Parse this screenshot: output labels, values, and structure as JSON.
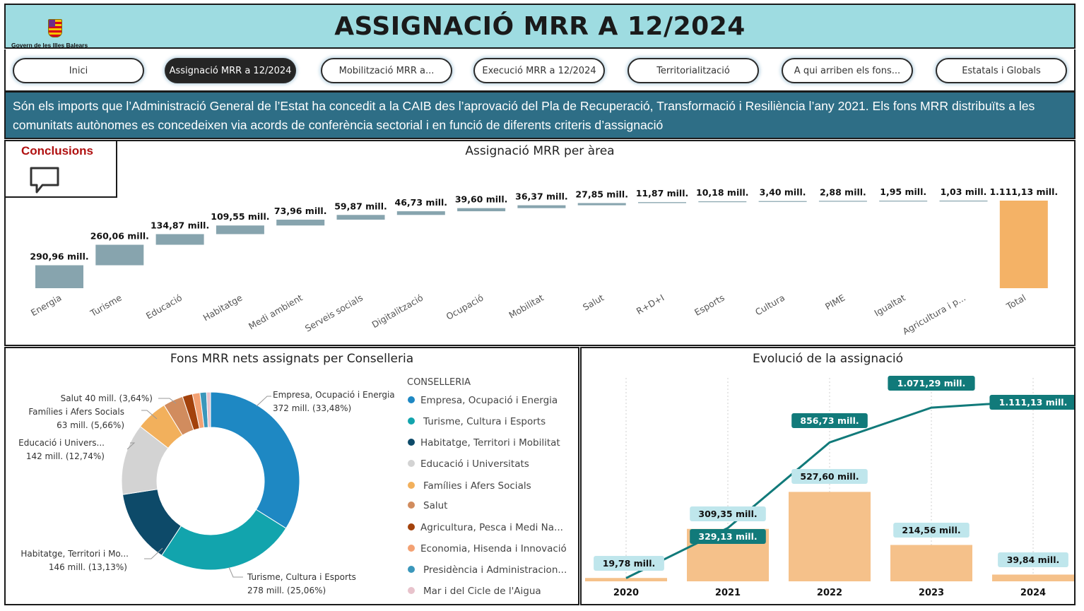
{
  "header": {
    "title": "ASSIGNACIÓ MRR A 12/2024",
    "logo_text": "Govern de les Illes Balears"
  },
  "nav": {
    "tabs": [
      {
        "label": "Inici",
        "active": false
      },
      {
        "label": "Assignació MRR a 12/2024",
        "active": true
      },
      {
        "label": "Mobilització MRR a...",
        "active": false
      },
      {
        "label": "Execució MRR a 12/2024",
        "active": false
      },
      {
        "label": "Territorialització",
        "active": false
      },
      {
        "label": "A qui arriben els fons...",
        "active": false
      },
      {
        "label": "Estatals i Globals",
        "active": false
      }
    ]
  },
  "banner": {
    "text": "Són els imports que l’Administració General de l’Estat ha concedit a la CAIB des l’aprovació del Pla de Recuperació, Transformació i Resiliència l’any 2021. Els fons MRR distribuïts a les comunitats autònomes es concedeixen via acords de conferència sectorial i en funció de diferents criteris d’assignació"
  },
  "conclusions": {
    "label": "Conclusions",
    "icon": "comment-icon"
  },
  "colors": {
    "header_bg": "#9edce1",
    "banner_bg": "#2e6e86",
    "waterfall_bar": "#87a4ae",
    "total_bar": "#f4b266",
    "line": "#117a7a",
    "bar_2": "#f5c18a",
    "label_bg": "#bfe6ec",
    "conclusions_red": "#b01010"
  },
  "chart_data": [
    {
      "type": "bar",
      "subtype": "waterfall",
      "title": "Assignació MRR per àrea",
      "categories": [
        "Energia",
        "Turisme",
        "Educació",
        "Habitatge",
        "Medi ambient",
        "Serveis socials",
        "Digitalització",
        "Ocupació",
        "Mobilitat",
        "Salut",
        "R+D+I",
        "Esports",
        "Cultura",
        "PIME",
        "Igualtat",
        "Agricultura i p...",
        "Total"
      ],
      "values": [
        290.96,
        260.06,
        134.87,
        109.55,
        73.96,
        59.87,
        46.73,
        39.6,
        36.37,
        27.85,
        11.87,
        10.18,
        3.4,
        2.88,
        1.95,
        1.03,
        1111.13
      ],
      "labels": [
        "290,96 mill.",
        "260,06 mill.",
        "134,87 mill.",
        "109,55 mill.",
        "73,96 mill.",
        "59,87 mill.",
        "46,73 mill.",
        "39,60 mill.",
        "36,37 mill.",
        "27,85 mill.",
        "11,87 mill.",
        "10,18 mill.",
        "3,40 mill.",
        "2,88 mill.",
        "1,95 mill.",
        "1,03 mill.",
        "1.111,13 mill."
      ],
      "ylim": [
        0,
        1111.13
      ]
    },
    {
      "type": "pie",
      "subtype": "donut",
      "title": "Fons MRR nets assignats per Conselleria",
      "legend_title": "CONSELLERIA",
      "legend_position": "right",
      "slices": [
        {
          "name": "Empresa, Ocupació i Energia",
          "value": 372,
          "pct": 33.48,
          "color": "#1e88c3",
          "label_name": "Empresa, Ocupació i Energia",
          "label_value": "372 mill. (33,48%)"
        },
        {
          "name": "Turisme, Cultura i Esports",
          "value": 278,
          "pct": 25.06,
          "color": "#12a4ad",
          "label_name": "Turisme, Cultura i Esports",
          "label_value": "278 mill. (25,06%)"
        },
        {
          "name": "Habitatge, Territori i Mobilitat",
          "value": 146,
          "pct": 13.13,
          "color": "#0d4a69",
          "label_name": "Habitatge, Territori i Mo...",
          "label_value": "146 mill. (13,13%)"
        },
        {
          "name": "Educació i Universitats",
          "value": 142,
          "pct": 12.74,
          "color": "#d3d3d3",
          "label_name": "Educació i Univers...",
          "label_value": "142 mill. (12,74%)"
        },
        {
          "name": "Famílies i Afers Socials",
          "value": 63,
          "pct": 5.66,
          "color": "#f2b05c",
          "label_name": "Famílies i Afers Socials",
          "label_value": "63 mill. (5,66%)"
        },
        {
          "name": "Salut",
          "value": 40,
          "pct": 3.64,
          "color": "#d18c5e",
          "label_name": "Salut 40 mill. (3,64%)",
          "label_value": ""
        },
        {
          "name": "Agricultura, Pesca i Medi Na...",
          "value": 20,
          "pct": 1.8,
          "color": "#a3420c",
          "label_name": "",
          "label_value": ""
        },
        {
          "name": "Economia, Hisenda i Innovació",
          "value": 15,
          "pct": 1.35,
          "color": "#f3a173",
          "label_name": "",
          "label_value": ""
        },
        {
          "name": "Presidència i Administracion...",
          "value": 13,
          "pct": 1.17,
          "color": "#3b97bb",
          "label_name": "",
          "label_value": ""
        },
        {
          "name": "Mar i del Cicle de l'Aigua",
          "value": 8,
          "pct": 0.7,
          "color": "#e8c3cc",
          "label_name": "",
          "label_value": ""
        }
      ]
    },
    {
      "type": "bar",
      "subtype": "bar-line-combo",
      "title": "Evolució de la assignació",
      "categories": [
        "2020",
        "2021",
        "2022",
        "2023",
        "2024"
      ],
      "series": [
        {
          "values": [
            19.78,
            309.35,
            527.6,
            214.56,
            39.84
          ],
          "labels": [
            "19,78 mill.",
            "309,35 mill.",
            "527,60 mill.",
            "214,56 mill.",
            "39,84 mill."
          ]
        },
        {
          "values": [
            19.78,
            329.13,
            856.73,
            1071.29,
            1111.13
          ],
          "labels": [
            "",
            "329,13 mill.",
            "856,73 mill.",
            "1.071,29 mill.",
            "1.111,13 mill."
          ]
        }
      ]
    }
  ]
}
